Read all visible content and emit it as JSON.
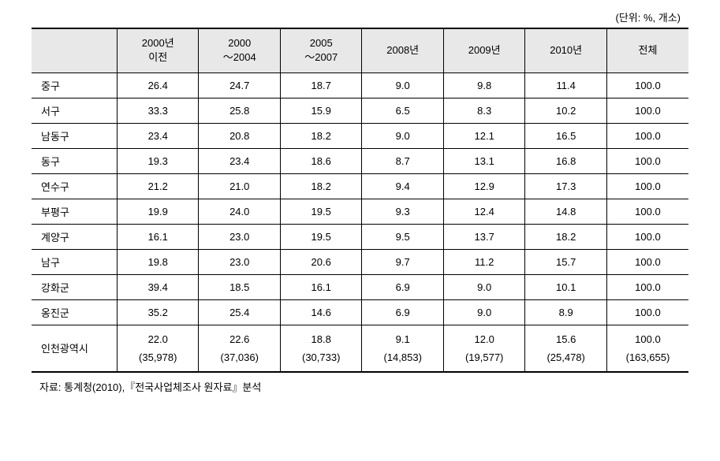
{
  "unit_label": "(단위: %, 개소)",
  "columns": [
    "",
    "2000년\n이전",
    "2000\n～2004",
    "2005\n～2007",
    "2008년",
    "2009년",
    "2010년",
    "전체"
  ],
  "rows": [
    {
      "label": "중구",
      "values": [
        "26.4",
        "24.7",
        "18.7",
        "9.0",
        "9.8",
        "11.4",
        "100.0"
      ]
    },
    {
      "label": "서구",
      "values": [
        "33.3",
        "25.8",
        "15.9",
        "6.5",
        "8.3",
        "10.2",
        "100.0"
      ]
    },
    {
      "label": "남동구",
      "values": [
        "23.4",
        "20.8",
        "18.2",
        "9.0",
        "12.1",
        "16.5",
        "100.0"
      ]
    },
    {
      "label": "동구",
      "values": [
        "19.3",
        "23.4",
        "18.6",
        "8.7",
        "13.1",
        "16.8",
        "100.0"
      ]
    },
    {
      "label": "연수구",
      "values": [
        "21.2",
        "21.0",
        "18.2",
        "9.4",
        "12.9",
        "17.3",
        "100.0"
      ]
    },
    {
      "label": "부평구",
      "values": [
        "19.9",
        "24.0",
        "19.5",
        "9.3",
        "12.4",
        "14.8",
        "100.0"
      ]
    },
    {
      "label": "계양구",
      "values": [
        "16.1",
        "23.0",
        "19.5",
        "9.5",
        "13.7",
        "18.2",
        "100.0"
      ]
    },
    {
      "label": "남구",
      "values": [
        "19.8",
        "23.0",
        "20.6",
        "9.7",
        "11.2",
        "15.7",
        "100.0"
      ]
    },
    {
      "label": "강화군",
      "values": [
        "39.4",
        "18.5",
        "16.1",
        "6.9",
        "9.0",
        "10.1",
        "100.0"
      ]
    },
    {
      "label": "옹진군",
      "values": [
        "35.2",
        "25.4",
        "14.6",
        "6.9",
        "9.0",
        "8.9",
        "100.0"
      ]
    }
  ],
  "total_row": {
    "label": "인천광역시",
    "pcts": [
      "22.0",
      "22.6",
      "18.8",
      "9.1",
      "12.0",
      "15.6",
      "100.0"
    ],
    "counts": [
      "(35,978)",
      "(37,036)",
      "(30,733)",
      "(14,853)",
      "(19,577)",
      "(25,478)",
      "(163,655)"
    ]
  },
  "source_note": "자료: 통계청(2010),『전국사업체조사 원자료』분석",
  "styles": {
    "header_bg": "#e8e8e8",
    "border_color": "#000000",
    "font_size_body": 13,
    "font_family": "Malgun Gothic",
    "text_color": "#000000",
    "background_color": "#ffffff"
  }
}
